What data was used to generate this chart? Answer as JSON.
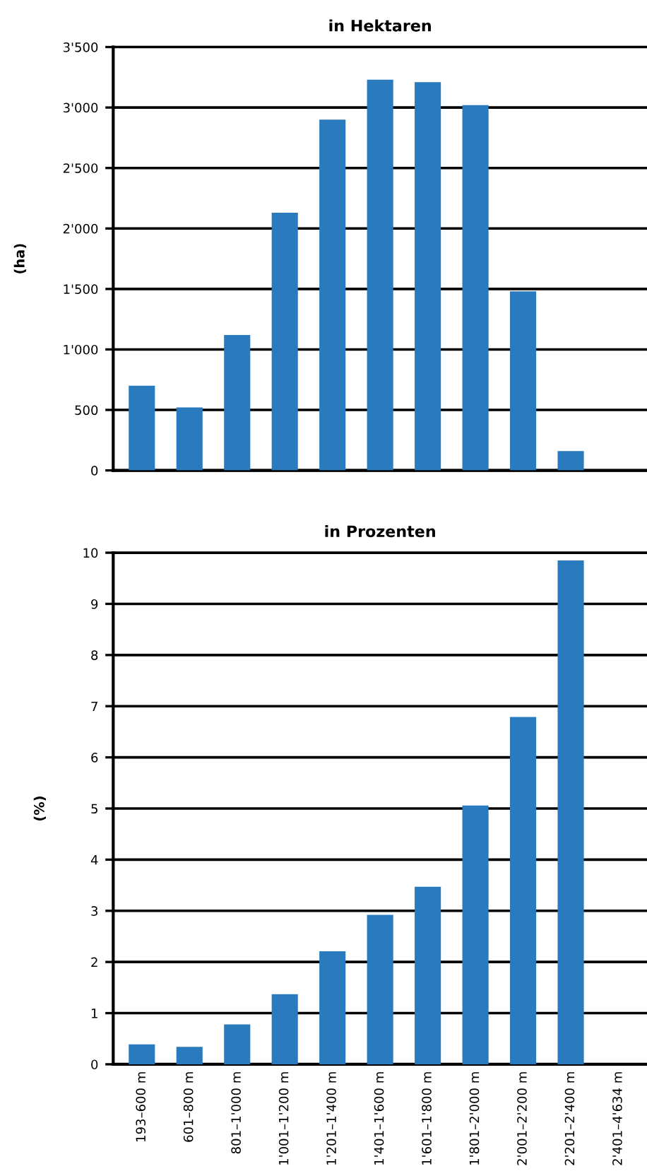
{
  "chart_data": [
    {
      "type": "bar",
      "title": "in Hektaren",
      "ylabel": "(ha)",
      "categories": [
        null,
        null,
        null,
        null,
        null,
        null,
        null,
        null,
        null,
        null,
        null
      ],
      "series": [
        {
          "color": "#2a7bbd",
          "values": [
            700,
            520,
            1120,
            2130,
            2900,
            3230,
            3210,
            3020,
            1480,
            160,
            null
          ]
        }
      ],
      "ylim": [
        0,
        3500
      ],
      "yticks": [
        0,
        {
          "value": 500,
          "label": "500"
        },
        {
          "value": 1000,
          "label": "1'000"
        },
        {
          "value": 1500,
          "label": "1'500"
        },
        {
          "value": 2000,
          "label": "2'000"
        },
        {
          "value": 2500,
          "label": "2'500"
        },
        {
          "value": 3000,
          "label": "3'000"
        },
        {
          "value": 3500,
          "label": "3'500"
        }
      ],
      "grid": "y",
      "tick_labels": "y"
    },
    {
      "type": "bar",
      "title": "in Prozenten",
      "ylabel": "(%)",
      "categories": [
        "193–600 m",
        "601–800 m",
        "801–1'000 m",
        "1'001–1'200 m",
        "1'201–1'400 m",
        "1'401–1'600 m",
        "1'601–1'800 m",
        "1'801–2'000 m",
        "2'001–2'200 m",
        "2'201–2'400 m",
        "2'401–4'634 m"
      ],
      "series": [
        {
          "color": "#2a7bbd",
          "values": [
            0.39,
            0.34,
            0.78,
            1.37,
            2.21,
            2.92,
            3.47,
            5.06,
            6.79,
            9.85,
            null
          ]
        }
      ],
      "ylim": [
        0,
        10
      ],
      "yticks": [
        0,
        1,
        2,
        3,
        4,
        5,
        6,
        7,
        8,
        9,
        10
      ],
      "grid": "y"
    }
  ]
}
